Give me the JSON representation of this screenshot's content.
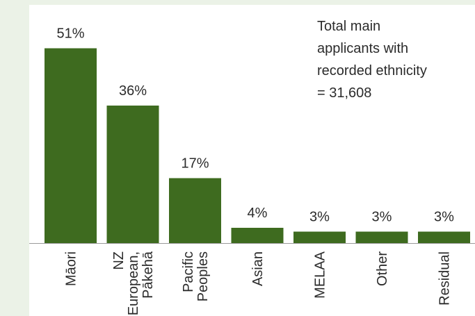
{
  "chart_data": {
    "type": "bar",
    "title": "",
    "xlabel": "",
    "ylabel": "",
    "categories": [
      [
        "Māori"
      ],
      [
        "NZ",
        "European,",
        "Pākehā"
      ],
      [
        "Pacific",
        "Peoples"
      ],
      [
        "Asian"
      ],
      [
        "MELAA"
      ],
      [
        "Other"
      ],
      [
        "Residual"
      ]
    ],
    "values": [
      51,
      36,
      17,
      4,
      3,
      3,
      3
    ],
    "value_labels": [
      "51%",
      "36%",
      "17%",
      "4%",
      "3%",
      "3%",
      "3%"
    ],
    "ylim": [
      0,
      60
    ],
    "grid": false,
    "bar_color": "#3e6b1f",
    "annotation": [
      "Total main",
      "applicants with",
      "recorded ethnicity",
      "= 31,608"
    ]
  }
}
